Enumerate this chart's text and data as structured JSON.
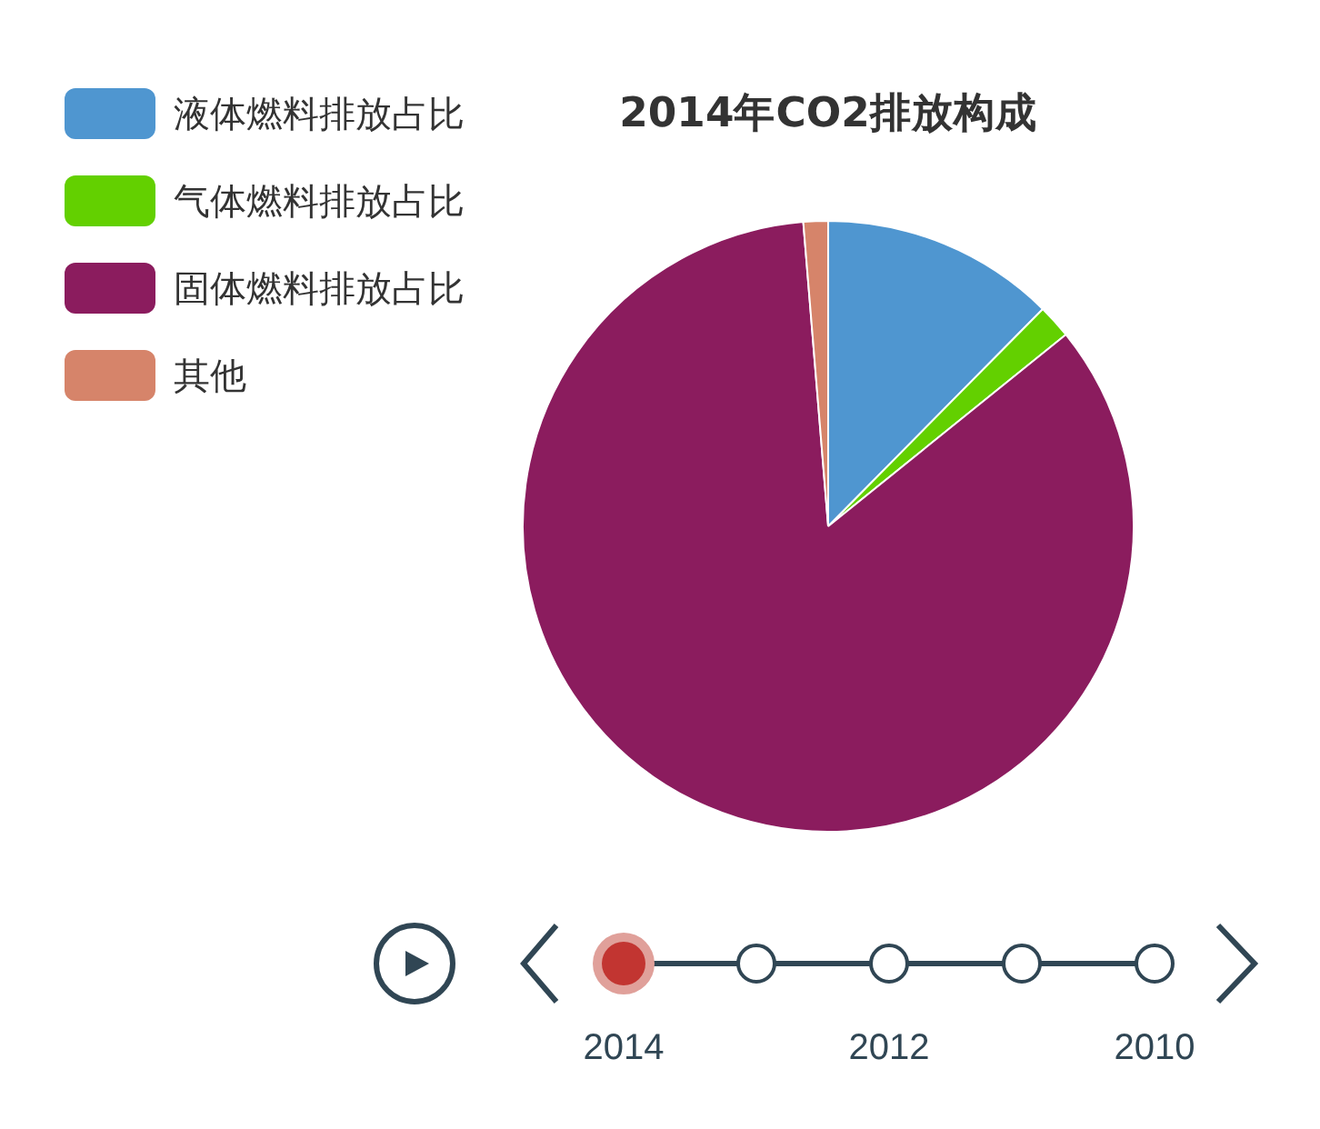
{
  "chart_data": {
    "type": "pie",
    "title": "2014年CO2排放构成",
    "categories": [
      "液体燃料排放占比",
      "气体燃料排放占比",
      "固体燃料排放占比",
      "其他"
    ],
    "values": [
      12.4,
      1.8,
      84.5,
      1.3
    ],
    "colors": [
      "#4f96d0",
      "#63d000",
      "#8b1c5e",
      "#d6846a"
    ],
    "legend": "top left",
    "annotations": [
      "2014",
      "2012",
      "2010"
    ]
  }
}
